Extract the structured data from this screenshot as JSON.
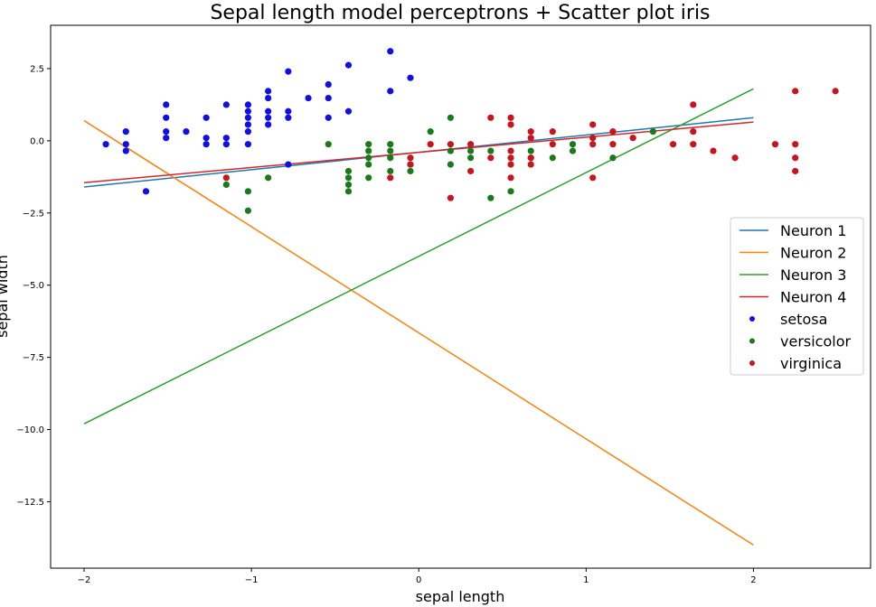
{
  "chart_data": {
    "type": "scatter",
    "title": "Sepal length model perceptrons + Scatter plot iris",
    "xlabel": "sepal length",
    "ylabel": "sepal width",
    "xlim": [
      -2.2,
      2.7
    ],
    "ylim": [
      -14.8,
      4.0
    ],
    "xticks": [
      -2,
      -1,
      0,
      1,
      2
    ],
    "xtick_labels": [
      "−2",
      "−1",
      "0",
      "1",
      "2"
    ],
    "yticks": [
      2.5,
      0.0,
      -2.5,
      -5.0,
      -7.5,
      -10.0,
      -12.5
    ],
    "ytick_labels": [
      "2.5",
      "0.0",
      "−2.5",
      "−5.0",
      "−7.5",
      "−10.0",
      "−12.5"
    ],
    "grid": false,
    "legend_position": "center-right",
    "lines": [
      {
        "name": "Neuron 1",
        "color": "#1f77b4",
        "x": [
          -2,
          2
        ],
        "y": [
          -1.6,
          0.8
        ]
      },
      {
        "name": "Neuron 2",
        "color": "#ff7f0e",
        "x": [
          -2,
          2
        ],
        "y": [
          0.7,
          -14.0
        ]
      },
      {
        "name": "Neuron 3",
        "color": "#2ca02c",
        "x": [
          -2,
          2
        ],
        "y": [
          -9.8,
          1.8
        ]
      },
      {
        "name": "Neuron 4",
        "color": "#d62728",
        "x": [
          -2,
          2
        ],
        "y": [
          -1.45,
          0.65
        ]
      }
    ],
    "series": [
      {
        "name": "setosa",
        "color": "#1010e6",
        "points": [
          [
            -1.87,
            -0.12
          ],
          [
            -1.75,
            0.32
          ],
          [
            -1.75,
            -0.12
          ],
          [
            -1.75,
            -0.35
          ],
          [
            -1.63,
            -1.75
          ],
          [
            -1.51,
            1.25
          ],
          [
            -1.51,
            0.8
          ],
          [
            -1.51,
            0.32
          ],
          [
            -1.51,
            0.1
          ],
          [
            -1.39,
            0.32
          ],
          [
            -1.27,
            0.8
          ],
          [
            -1.27,
            0.1
          ],
          [
            -1.27,
            -0.12
          ],
          [
            -1.15,
            1.25
          ],
          [
            -1.15,
            0.1
          ],
          [
            -1.15,
            -0.12
          ],
          [
            -1.02,
            1.25
          ],
          [
            -1.02,
            1.02
          ],
          [
            -1.02,
            0.8
          ],
          [
            -1.02,
            0.56
          ],
          [
            -1.02,
            0.32
          ],
          [
            -1.02,
            -0.12
          ],
          [
            -0.9,
            1.72
          ],
          [
            -0.9,
            1.48
          ],
          [
            -0.9,
            1.02
          ],
          [
            -0.9,
            0.8
          ],
          [
            -0.9,
            0.56
          ],
          [
            -0.78,
            2.4
          ],
          [
            -0.78,
            1.02
          ],
          [
            -0.78,
            0.8
          ],
          [
            -0.78,
            -0.82
          ],
          [
            -0.66,
            1.48
          ],
          [
            -0.54,
            1.95
          ],
          [
            -0.54,
            1.48
          ],
          [
            -0.54,
            0.8
          ],
          [
            -0.42,
            2.62
          ],
          [
            -0.42,
            1.02
          ],
          [
            -0.17,
            3.1
          ],
          [
            -0.17,
            1.72
          ],
          [
            -0.05,
            2.18
          ]
        ]
      },
      {
        "name": "versicolor",
        "color": "#1a7a1a",
        "points": [
          [
            -1.15,
            -1.52
          ],
          [
            -1.02,
            -2.42
          ],
          [
            -1.02,
            -1.75
          ],
          [
            -0.9,
            -1.28
          ],
          [
            -0.54,
            -0.12
          ],
          [
            -0.42,
            -1.05
          ],
          [
            -0.42,
            -1.28
          ],
          [
            -0.42,
            -1.52
          ],
          [
            -0.42,
            -1.75
          ],
          [
            -0.3,
            -0.12
          ],
          [
            -0.3,
            -0.35
          ],
          [
            -0.3,
            -0.59
          ],
          [
            -0.3,
            -0.82
          ],
          [
            -0.3,
            -1.28
          ],
          [
            -0.17,
            -0.12
          ],
          [
            -0.17,
            -0.35
          ],
          [
            -0.17,
            -0.59
          ],
          [
            -0.17,
            -1.05
          ],
          [
            -0.05,
            -0.82
          ],
          [
            -0.05,
            -1.05
          ],
          [
            0.07,
            0.32
          ],
          [
            0.19,
            0.8
          ],
          [
            0.19,
            -0.35
          ],
          [
            0.19,
            -0.82
          ],
          [
            0.31,
            -0.35
          ],
          [
            0.31,
            -0.59
          ],
          [
            0.43,
            -0.35
          ],
          [
            0.43,
            -1.98
          ],
          [
            0.55,
            -1.75
          ],
          [
            0.67,
            -0.35
          ],
          [
            0.67,
            -0.59
          ],
          [
            0.8,
            -0.59
          ],
          [
            0.92,
            -0.12
          ],
          [
            0.92,
            -0.35
          ],
          [
            1.16,
            -0.59
          ],
          [
            1.4,
            0.32
          ]
        ]
      },
      {
        "name": "virginica",
        "color": "#c8141e",
        "points": [
          [
            -1.15,
            -1.28
          ],
          [
            -0.17,
            -1.28
          ],
          [
            -0.05,
            -0.59
          ],
          [
            -0.05,
            -0.82
          ],
          [
            0.07,
            -0.12
          ],
          [
            0.19,
            -0.12
          ],
          [
            0.19,
            -1.98
          ],
          [
            0.31,
            -0.12
          ],
          [
            0.31,
            -1.05
          ],
          [
            0.43,
            0.8
          ],
          [
            0.43,
            -0.59
          ],
          [
            0.55,
            0.8
          ],
          [
            0.55,
            0.56
          ],
          [
            0.55,
            -0.35
          ],
          [
            0.55,
            -0.59
          ],
          [
            0.55,
            -0.82
          ],
          [
            0.55,
            -1.28
          ],
          [
            0.67,
            0.32
          ],
          [
            0.67,
            0.1
          ],
          [
            0.67,
            -0.59
          ],
          [
            0.67,
            -0.82
          ],
          [
            0.8,
            0.32
          ],
          [
            0.8,
            -0.12
          ],
          [
            1.04,
            0.56
          ],
          [
            1.04,
            0.1
          ],
          [
            1.04,
            -0.12
          ],
          [
            1.04,
            -1.28
          ],
          [
            1.16,
            0.32
          ],
          [
            1.16,
            -0.12
          ],
          [
            1.28,
            0.1
          ],
          [
            1.52,
            -0.12
          ],
          [
            1.64,
            1.25
          ],
          [
            1.64,
            0.32
          ],
          [
            1.64,
            -0.12
          ],
          [
            1.76,
            -0.35
          ],
          [
            1.89,
            -0.59
          ],
          [
            2.13,
            -0.12
          ],
          [
            2.25,
            1.72
          ],
          [
            2.25,
            -0.12
          ],
          [
            2.25,
            -0.59
          ],
          [
            2.25,
            -1.05
          ],
          [
            2.49,
            1.72
          ]
        ]
      }
    ]
  }
}
